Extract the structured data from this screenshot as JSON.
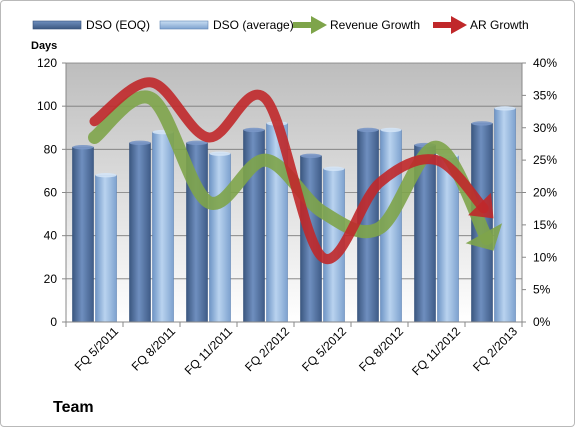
{
  "chart_data": {
    "type": "bar",
    "title": "",
    "bottom_label": "Team",
    "y_left": {
      "label": "Days",
      "lim": [
        0,
        120
      ],
      "ticks": [
        "0",
        "20",
        "40",
        "60",
        "80",
        "100",
        "120"
      ]
    },
    "y_right": {
      "label": "",
      "lim": [
        0,
        40
      ],
      "ticks": [
        "0%",
        "5%",
        "10%",
        "15%",
        "20%",
        "25%",
        "30%",
        "35%",
        "40%"
      ]
    },
    "categories": [
      "FQ 5/2011",
      "FQ 8/2011",
      "FQ 11/2011",
      "FQ 2/2012",
      "FQ 5/2012",
      "FQ 8/2012",
      "FQ 11/2012",
      "FQ 2/2013"
    ],
    "series": [
      {
        "name": "DSO (EOQ)",
        "kind": "bar",
        "axis": "left",
        "color": "#4f6f9f",
        "values": [
          81,
          83,
          83,
          89,
          77,
          89,
          82,
          92
        ]
      },
      {
        "name": "DSO (average)",
        "kind": "bar",
        "axis": "left",
        "color": "#8eb0d8",
        "values": [
          68,
          88,
          78,
          92,
          71,
          89,
          77,
          99
        ]
      },
      {
        "name": "Revenue Growth",
        "kind": "arrow-line",
        "axis": "right",
        "color": "#7ea44a",
        "values": [
          28.5,
          34.5,
          18.5,
          25,
          17,
          14.5,
          27,
          11
        ]
      },
      {
        "name": "AR Growth",
        "kind": "arrow-line",
        "axis": "right",
        "color": "#c0282a",
        "values": [
          31,
          37,
          28.5,
          34.5,
          10,
          21.5,
          25,
          16
        ]
      }
    ],
    "grid": true,
    "legend_position": "top"
  }
}
